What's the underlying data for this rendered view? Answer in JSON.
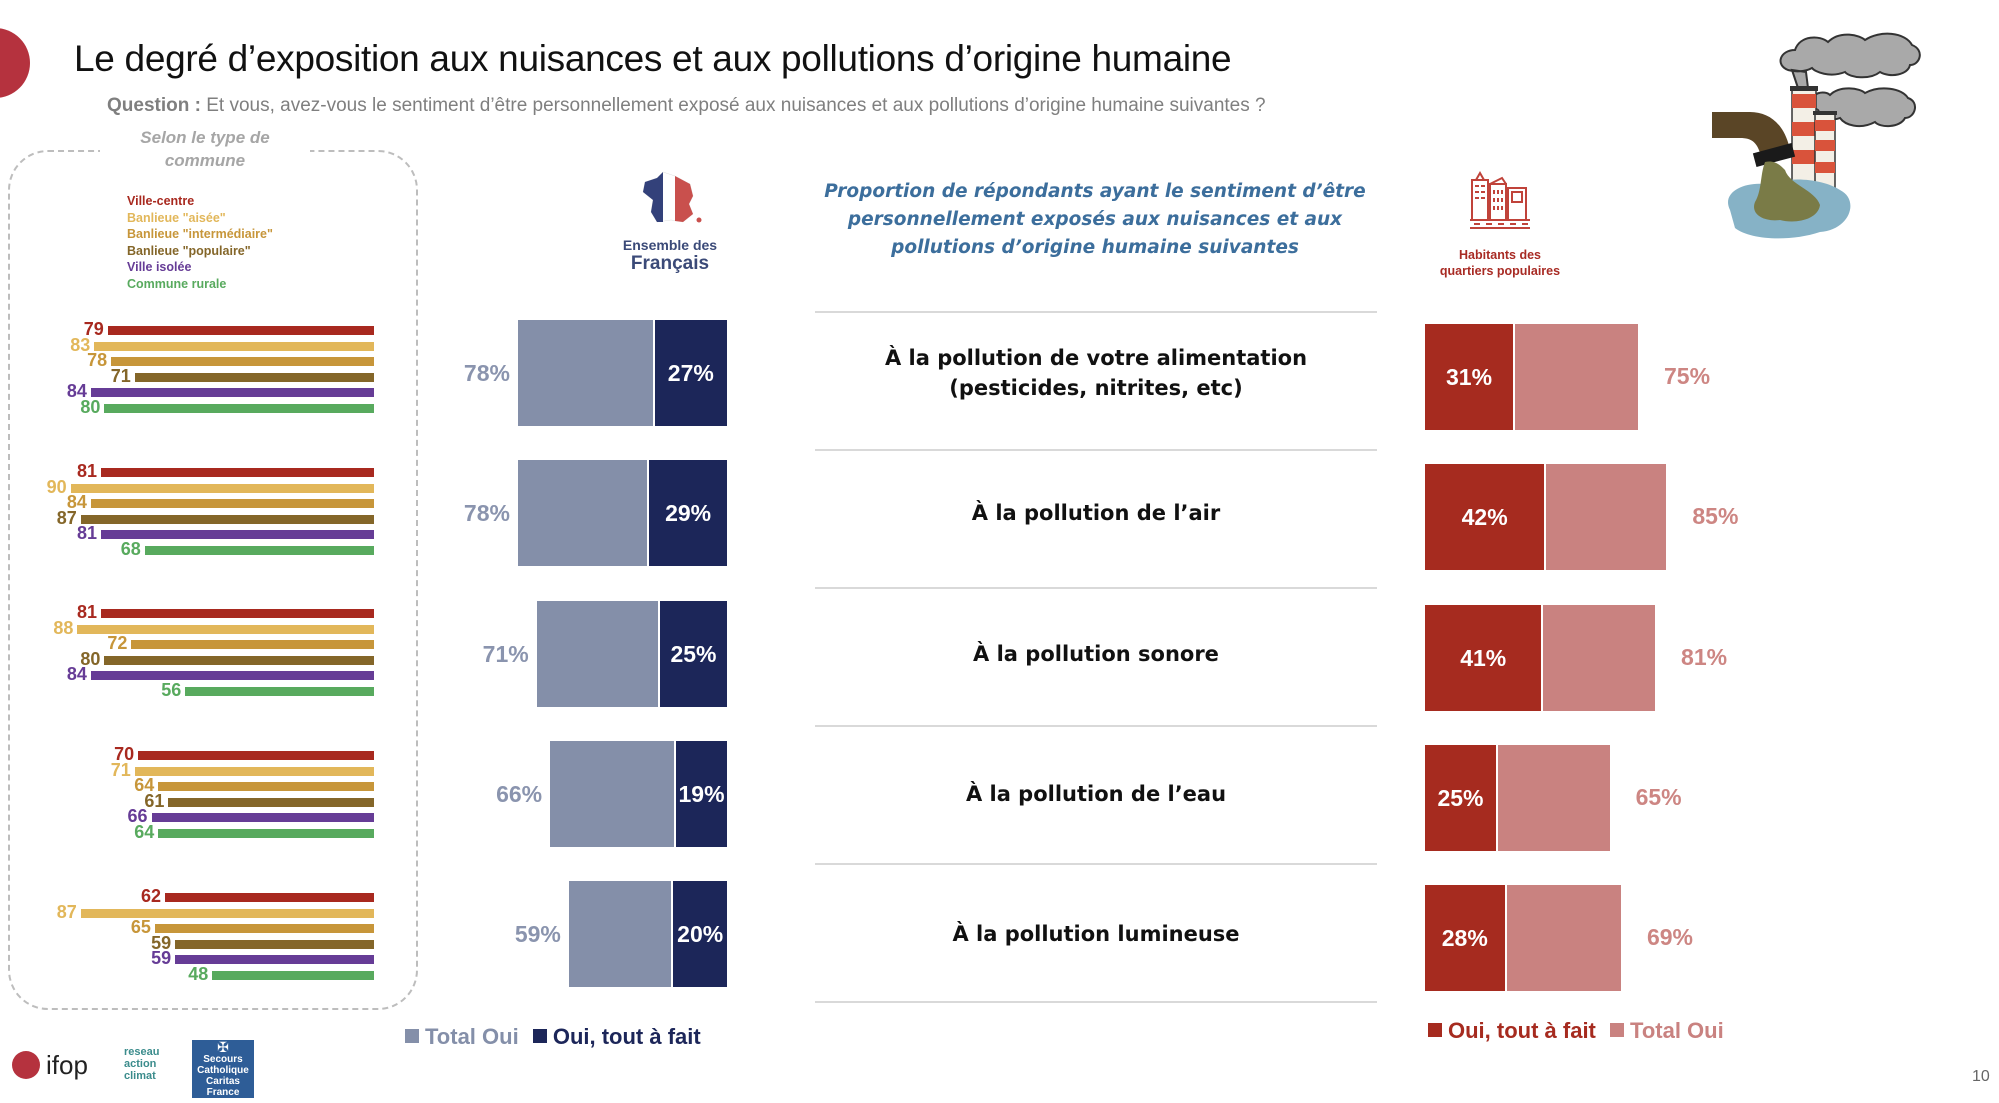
{
  "header": {
    "title": "Le degré d’exposition aux nuisances et aux pollutions d’origine humaine",
    "question_label": "Question :",
    "question_text": " Et vous, avez-vous le sentiment d’être personnellement exposé aux nuisances et aux pollutions d’origine humaine suivantes ?"
  },
  "left_panel": {
    "title_line1": "Selon le type de",
    "title_line2": "commune",
    "legend": [
      {
        "label": "Ville-centre",
        "color": "#a8291f"
      },
      {
        "label": "Banlieue \"aisée\"",
        "color": "#e2b75a"
      },
      {
        "label": "Banlieue \"intermédiaire\"",
        "color": "#c7963a"
      },
      {
        "label": "Banlieue \"populaire\"",
        "color": "#846629"
      },
      {
        "label": "Ville isolée",
        "color": "#663c96"
      },
      {
        "label": "Commune rurale",
        "color": "#58aa5e"
      }
    ]
  },
  "center_header": {
    "line1": "Ensemble des",
    "line2": "Français",
    "map_icon": "france-flag-map-icon"
  },
  "center_title": "Proportion de répondants ayant le sentiment d’être personnellement exposés aux nuisances et aux pollutions d’origine humaine suivantes",
  "right_header": {
    "line1": "Habitants des",
    "line2": "quartiers populaires",
    "icon": "city-buildings-icon"
  },
  "illustration": "pollution-factory-pipe-illustration",
  "legend_center": {
    "total": "Total Oui",
    "tout": "Oui, tout à fait",
    "total_color": "#848fa9",
    "tout_color": "#1c2659"
  },
  "legend_right": {
    "tout": "Oui, tout à fait",
    "total": "Total Oui",
    "tout_color": "#a62b1f",
    "total_color": "#c98280"
  },
  "page_number": "10",
  "logos": [
    "ifop",
    "reseau action climat",
    "Secours Catholique Caritas France"
  ],
  "chart_data": [
    {
      "type": "bar",
      "title": "Selon le type de commune",
      "orientation": "horizontal",
      "categories": [
        "À la pollution de votre alimentation (pesticides, nitrites, etc)",
        "À la pollution de l’air",
        "À la pollution sonore",
        "À la pollution de l’eau",
        "À la pollution lumineuse"
      ],
      "series": [
        {
          "name": "Ville-centre",
          "values": [
            79,
            81,
            81,
            70,
            62
          ]
        },
        {
          "name": "Banlieue \"aisée\"",
          "values": [
            83,
            90,
            88,
            71,
            87
          ]
        },
        {
          "name": "Banlieue \"intermédiaire\"",
          "values": [
            78,
            84,
            72,
            64,
            65
          ]
        },
        {
          "name": "Banlieue \"populaire\"",
          "values": [
            71,
            87,
            80,
            61,
            59
          ]
        },
        {
          "name": "Ville isolée",
          "values": [
            84,
            81,
            84,
            66,
            59
          ]
        },
        {
          "name": "Commune rurale",
          "values": [
            80,
            68,
            56,
            64,
            48
          ]
        }
      ],
      "unit": "%",
      "xlim": [
        0,
        100
      ]
    },
    {
      "type": "bar",
      "title": "Ensemble des Français",
      "orientation": "horizontal",
      "categories": [
        "À la pollution de votre alimentation (pesticides, nitrites, etc)",
        "À la pollution de l’air",
        "À la pollution sonore",
        "À la pollution de l’eau",
        "À la pollution lumineuse"
      ],
      "series": [
        {
          "name": "Total Oui",
          "values": [
            78,
            78,
            71,
            66,
            59
          ],
          "labels": [
            "78%",
            "78%",
            "71%",
            "66%",
            "59%"
          ]
        },
        {
          "name": "Oui, tout à fait",
          "values": [
            27,
            29,
            25,
            19,
            20
          ],
          "labels": [
            "27%",
            "29%",
            "25%",
            "19%",
            "20%"
          ]
        }
      ],
      "unit": "%",
      "xlim": [
        0,
        100
      ]
    },
    {
      "type": "bar",
      "title": "Habitants des quartiers populaires",
      "orientation": "horizontal",
      "categories": [
        "À la pollution de votre alimentation (pesticides, nitrites, etc)",
        "À la pollution de l’air",
        "À la pollution sonore",
        "À la pollution de l’eau",
        "À la pollution lumineuse"
      ],
      "series": [
        {
          "name": "Oui, tout à fait",
          "values": [
            31,
            42,
            41,
            25,
            28
          ],
          "labels": [
            "31%",
            "42%",
            "41%",
            "25%",
            "28%"
          ]
        },
        {
          "name": "Total Oui",
          "values": [
            75,
            85,
            81,
            65,
            69
          ],
          "labels": [
            "75%",
            "85%",
            "81%",
            "65%",
            "69%"
          ]
        }
      ],
      "unit": "%",
      "xlim": [
        0,
        100
      ]
    }
  ]
}
